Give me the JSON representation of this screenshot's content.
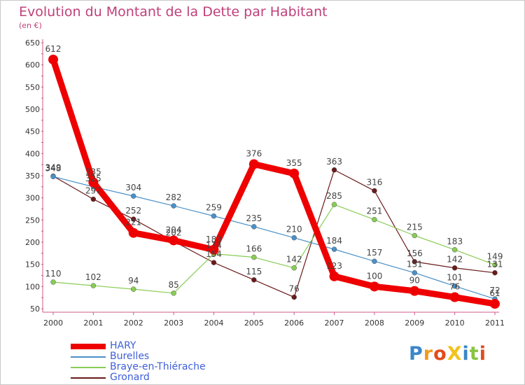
{
  "chart_data": {
    "type": "line",
    "title": "Evolution du Montant de la Dette par Habitant",
    "subtitle": "(en €)",
    "xlabel": "",
    "ylabel": "",
    "categories": [
      "2000",
      "2001",
      "2002",
      "2003",
      "2004",
      "2005",
      "2006",
      "2007",
      "2008",
      "2009",
      "2010",
      "2011"
    ],
    "y_ticks": [
      50,
      100,
      150,
      200,
      250,
      300,
      350,
      400,
      450,
      500,
      550,
      600,
      650
    ],
    "ylim": [
      50,
      650
    ],
    "grid": false,
    "legend_position": "bottom-left",
    "series": [
      {
        "name": "HARY",
        "color": "#ee0000",
        "values": [
          612,
          335,
          221,
          204,
          183,
          376,
          355,
          123,
          100,
          90,
          76,
          61
        ]
      },
      {
        "name": "Burelles",
        "color": "#4a90c8",
        "values": [
          348,
          325,
          304,
          282,
          259,
          235,
          210,
          184,
          157,
          131,
          101,
          72
        ]
      },
      {
        "name": "Braye-en-Thiérache",
        "color": "#88cc55",
        "values": [
          110,
          102,
          94,
          85,
          174,
          166,
          142,
          285,
          251,
          215,
          183,
          149
        ]
      },
      {
        "name": "Gronard",
        "color": "#6a1a1a",
        "values": [
          349,
          297,
          252,
          202,
          154,
          115,
          76,
          363,
          316,
          156,
          142,
          131
        ]
      }
    ]
  },
  "logo": {
    "text": "ProXiti",
    "colors": [
      "#3a86c8",
      "#f29a1c",
      "#e24b1c",
      "#f2c21c",
      "#3a86c8",
      "#88c440",
      "#e24b1c"
    ]
  }
}
